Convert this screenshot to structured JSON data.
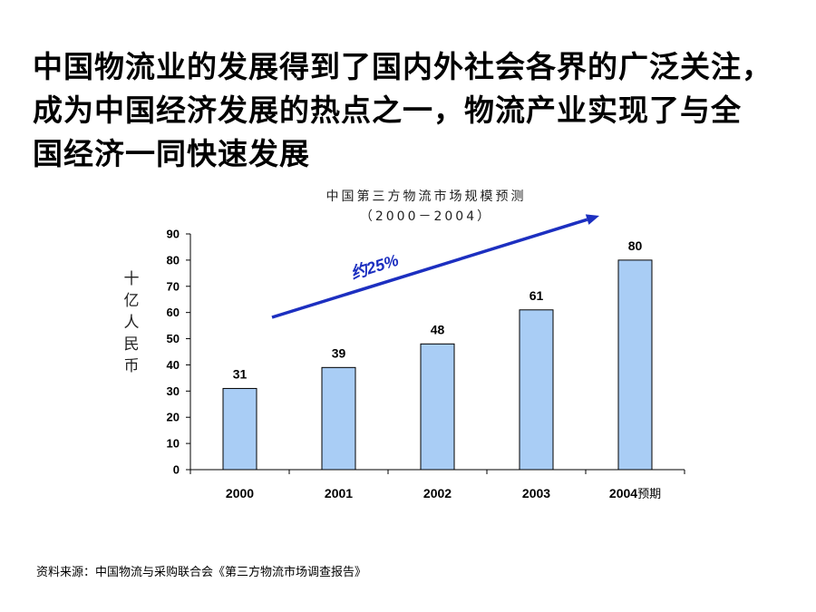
{
  "headline": [
    "中国物流业的发展得到了国内外社会各界的广泛关注，",
    "成为中国经济发展的热点之一，物流产业实现了与全",
    "国经济一同快速发展"
  ],
  "source_note": "资料来源：中国物流与采购联合会《第三方物流市场调查报告》",
  "colors": {
    "bar_fill": "#a9cdf5",
    "bar_stroke": "#000000",
    "arrow": "#1c2fc0"
  },
  "chart_data": {
    "type": "bar",
    "title": "中国第三方物流市场规模预测",
    "subtitle": "（2000－2004）",
    "ylabel": "十亿人民币",
    "categories": [
      "2000",
      "2001",
      "2002",
      "2003",
      "2004"
    ],
    "category_suffix": [
      "",
      "",
      "",
      "",
      "预期"
    ],
    "values": [
      31,
      39,
      48,
      61,
      80
    ],
    "ylim": [
      0,
      90
    ],
    "yticks": [
      0,
      10,
      20,
      30,
      40,
      50,
      60,
      70,
      80,
      90
    ],
    "grid": false,
    "annotation": {
      "text": "约25%",
      "shape": "arrow"
    }
  }
}
